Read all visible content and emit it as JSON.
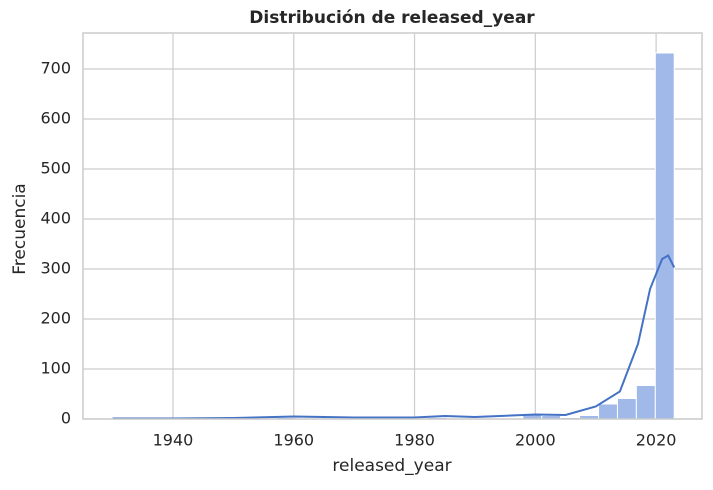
{
  "chart_data": {
    "type": "histogram",
    "title": "Distribución de released_year",
    "x_label": "released_year",
    "y_label": "Frecuencia",
    "bins": [
      1929,
      1932.13,
      1935.27,
      1938.4,
      1941.53,
      1944.67,
      1947.8,
      1950.93,
      1954.07,
      1957.2,
      1960.33,
      1963.47,
      1966.6,
      1969.73,
      1972.87,
      1976,
      1979.13,
      1982.27,
      1985.4,
      1988.53,
      1991.67,
      1994.8,
      1997.93,
      2001.07,
      2004.2,
      2007.33,
      2010.47,
      2013.6,
      2016.73,
      2019.87,
      2023
    ],
    "values": [
      1,
      0,
      0,
      0,
      1,
      1,
      1,
      2,
      2,
      3,
      1,
      1,
      1,
      1,
      1,
      2,
      1,
      3,
      2,
      1,
      1,
      2,
      8,
      7,
      3,
      7,
      30,
      41,
      67,
      732
    ],
    "color": "#a1b9e8",
    "kde": {
      "color": "#4472c4",
      "x": [
        1930,
        1940,
        1950,
        1960,
        1970,
        1980,
        1985,
        1990,
        2000,
        2005,
        2010,
        2014,
        2017,
        2019,
        2021,
        2022,
        2023
      ],
      "values": [
        1,
        1,
        2,
        5,
        3,
        3,
        6,
        4,
        9,
        8,
        25,
        55,
        150,
        260,
        320,
        327,
        303
      ]
    },
    "xlim": [
      1925.1,
      2027.6
    ],
    "ylim": [
      0,
      772
    ],
    "xticks": [
      1940,
      1960,
      1980,
      2000,
      2020
    ],
    "yticks": [
      0,
      100,
      200,
      300,
      400,
      500,
      600,
      700
    ],
    "grid": true
  }
}
